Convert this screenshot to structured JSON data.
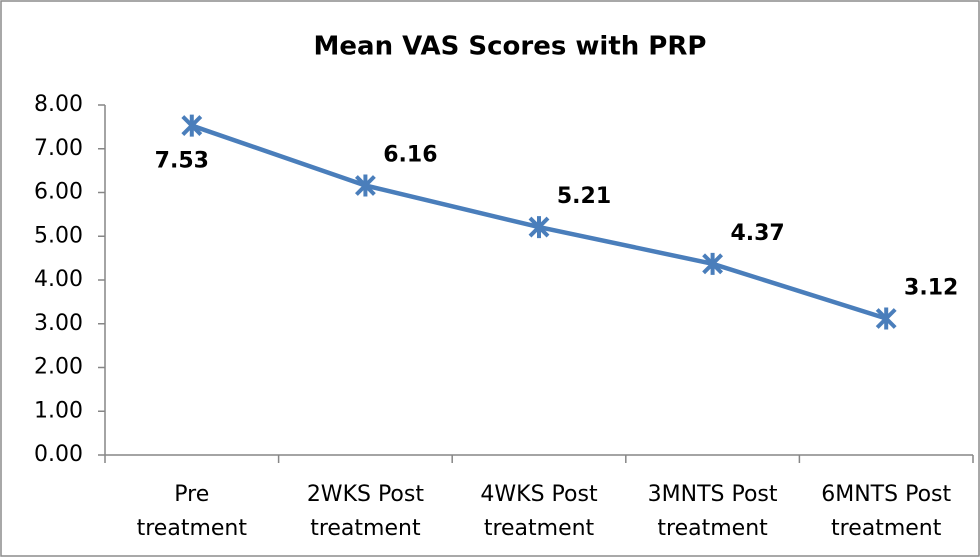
{
  "chart_data": {
    "type": "line",
    "title": "Mean VAS Scores with PRP",
    "categories": [
      "Pre treatment",
      "2WKS Post treatment",
      "4WKS Post treatment",
      "3MNTS Post treatment",
      "6MNTS Post treatment"
    ],
    "values": [
      7.53,
      6.16,
      5.21,
      4.37,
      3.12
    ],
    "color": "#4a7ebb",
    "ylim": [
      0,
      8
    ],
    "yticks": [
      {
        "value": 0,
        "label": "0.00"
      },
      {
        "value": 1,
        "label": "1.00"
      },
      {
        "value": 2,
        "label": "2.00"
      },
      {
        "value": 3,
        "label": "3.00"
      },
      {
        "value": 4,
        "label": "4.00"
      },
      {
        "value": 5,
        "label": "5.00"
      },
      {
        "value": 6,
        "label": "6.00"
      },
      {
        "value": 7,
        "label": "7.00"
      },
      {
        "value": 8,
        "label": "8.00"
      }
    ],
    "grid": false
  }
}
